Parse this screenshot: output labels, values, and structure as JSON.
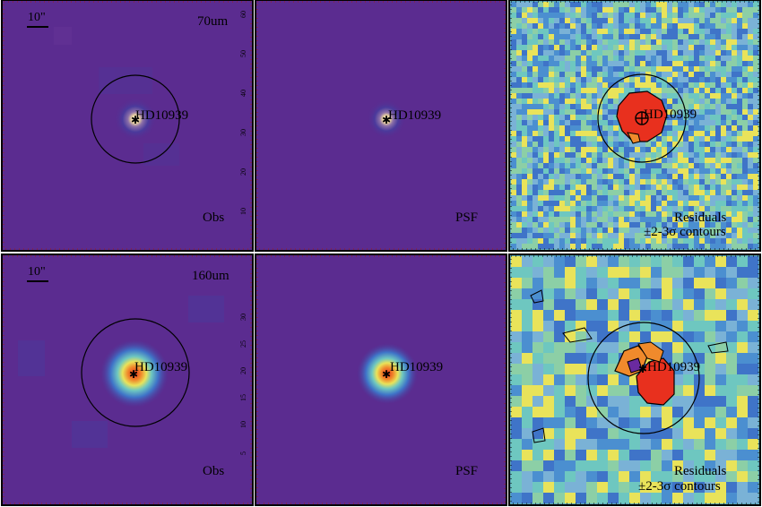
{
  "figure": {
    "target_name": "HD10939",
    "scale_bar_label": "10\"",
    "residual_note": "±2-3σ contours",
    "colors": {
      "background": "#5a2b8f",
      "cmap_low": "#3b1e6e",
      "cmap_mid_blue": "#3f74c8",
      "cmap_cyan": "#6ec7c0",
      "cmap_yellow": "#e9e35a",
      "cmap_orange": "#f08a2c",
      "cmap_red": "#e8301e",
      "cmap_white": "#f4efe8",
      "frame_dotted": "#a31d1d"
    }
  },
  "rows": [
    {
      "band": "70um",
      "panels": [
        {
          "kind": "obs",
          "label": "Obs",
          "band_label": "70um",
          "show_scalebar": true
        },
        {
          "kind": "psf",
          "label": "PSF",
          "tick_labels": [
            "10",
            "20",
            "30",
            "40",
            "50",
            "60"
          ]
        },
        {
          "kind": "residual",
          "label": "Residuals",
          "sublabel": "±2-3σ contours"
        }
      ]
    },
    {
      "band": "160um",
      "panels": [
        {
          "kind": "obs",
          "label": "Obs",
          "band_label": "160um",
          "show_scalebar": true
        },
        {
          "kind": "psf",
          "label": "PSF",
          "tick_labels": [
            "5",
            "10",
            "15",
            "20",
            "25",
            "30"
          ]
        },
        {
          "kind": "residual",
          "label": "Residuals",
          "sublabel": "±2-3σ contours"
        }
      ]
    }
  ]
}
